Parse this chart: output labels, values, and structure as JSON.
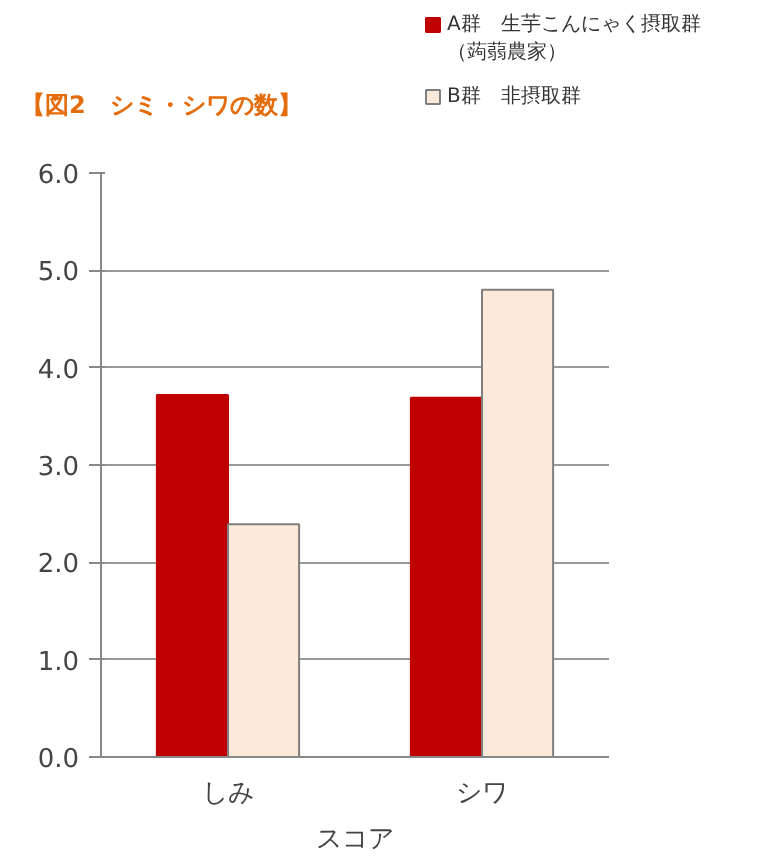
{
  "chart_data": {
    "type": "bar",
    "title": "【図2　シミ・シワの数】",
    "xlabel": "スコア",
    "categories": [
      "しみ",
      "シワ"
    ],
    "series": [
      {
        "name": "A群　生芋こんにゃく摂取群（蒟蒻農家）",
        "color": "#c00000",
        "values": [
          3.72,
          3.69
        ]
      },
      {
        "name": "B群　非摂取群",
        "color": "#fde9d9",
        "values": [
          2.39,
          4.8
        ]
      }
    ],
    "ylim": [
      0,
      6
    ],
    "yticks": [
      {
        "value": 0,
        "label": "0.0"
      },
      {
        "value": 1,
        "label": "1.0"
      },
      {
        "value": 2,
        "label": "2.0"
      },
      {
        "value": 3,
        "label": "3.0"
      },
      {
        "value": 4,
        "label": "4.0"
      },
      {
        "value": 5,
        "label": "5.0"
      },
      {
        "value": 6,
        "label": "6.0"
      }
    ],
    "grid": "y",
    "legend": "top right"
  }
}
